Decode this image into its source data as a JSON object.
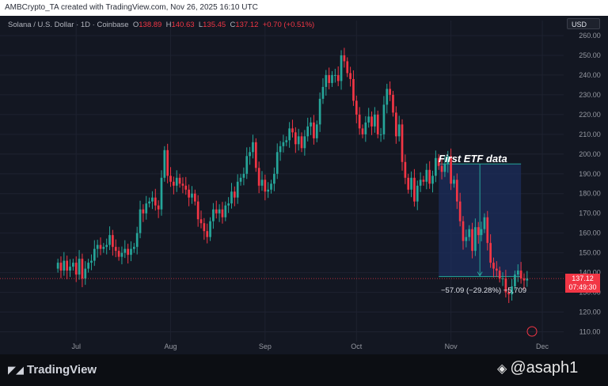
{
  "header": {
    "created_by": "AMBCrypto_TA created with TradingView.com, Nov 26, 2025 16:10 UTC",
    "symbol": "Solana / U.S. Dollar · 1D · Coinbase",
    "open_label": "O",
    "open": "138.89",
    "high_label": "H",
    "high": "140.63",
    "low_label": "L",
    "low": "135.45",
    "close_label": "C",
    "close": "137.12",
    "change": "+0.70 (+0.51%)"
  },
  "currency": "USD",
  "price_tag": {
    "price": "137.12",
    "countdown": "07:49:30"
  },
  "annotation": {
    "title": "First ETF data",
    "measure": "−57.09 (−29.28%) −5,709"
  },
  "footer": {
    "brand": "TradingView",
    "author": "@asaph1"
  },
  "colors": {
    "up": "#26a69a",
    "down": "#f23645",
    "measure_box": "#1c2e5c"
  },
  "chart_data": {
    "type": "candlestick",
    "title": "",
    "xlabel": "",
    "ylabel": "",
    "ylim": [
      105,
      262
    ],
    "y_ticks": [
      110,
      120,
      130,
      140,
      150,
      160,
      170,
      180,
      190,
      200,
      210,
      220,
      230,
      240,
      250,
      260
    ],
    "x_ticks": [
      {
        "label": "Jul",
        "date": "2025-07-01"
      },
      {
        "label": "Aug",
        "date": "2025-08-01"
      },
      {
        "label": "Sep",
        "date": "2025-09-01"
      },
      {
        "label": "Oct",
        "date": "2025-10-01"
      },
      {
        "label": "Nov",
        "date": "2025-11-01"
      },
      {
        "label": "Dec",
        "date": "2025-12-01"
      }
    ],
    "x_range": [
      "2025-06-06",
      "2025-12-08"
    ],
    "grid": true,
    "series": [
      {
        "name": "",
        "close": [
          145,
          141,
          146,
          141,
          143,
          145,
          139,
          147,
          137,
          142,
          145,
          146,
          152,
          154,
          152,
          153,
          154,
          159,
          153,
          151,
          148,
          150,
          152,
          149,
          152,
          153,
          160,
          172,
          170,
          175,
          176,
          178,
          174,
          172,
          188,
          202,
          189,
          186,
          184,
          188,
          185,
          184,
          182,
          178,
          180,
          176,
          167,
          165,
          161,
          158,
          166,
          172,
          170,
          172,
          168,
          174,
          175,
          181,
          178,
          186,
          188,
          190,
          199,
          201,
          206,
          193,
          184,
          187,
          181,
          182,
          185,
          190,
          201,
          204,
          206,
          207,
          213,
          211,
          205,
          209,
          203,
          209,
          214,
          216,
          208,
          215,
          228,
          234,
          240,
          236,
          240,
          240,
          237,
          250,
          247,
          241,
          238,
          227,
          220,
          213,
          210,
          216,
          219,
          214,
          220,
          210,
          210,
          225,
          233,
          230,
          221,
          209,
          215,
          196,
          188,
          182,
          188,
          176,
          184,
          187,
          186,
          192,
          185,
          189,
          198,
          194,
          191,
          195,
          199,
          185,
          187,
          176,
          166,
          156,
          158,
          162,
          151,
          163,
          159,
          162,
          168,
          155,
          145,
          142,
          141,
          137,
          137,
          130,
          129,
          133,
          139,
          141,
          137,
          136,
          137
        ],
        "end_date": "2025-11-26"
      }
    ],
    "annotations": [
      {
        "type": "date_price_range",
        "from_date": "2025-10-28",
        "to_date": "2025-11-24",
        "from_price": 195,
        "to_price": 138,
        "change": "−57.09",
        "change_pct": "−29.28%"
      }
    ]
  }
}
